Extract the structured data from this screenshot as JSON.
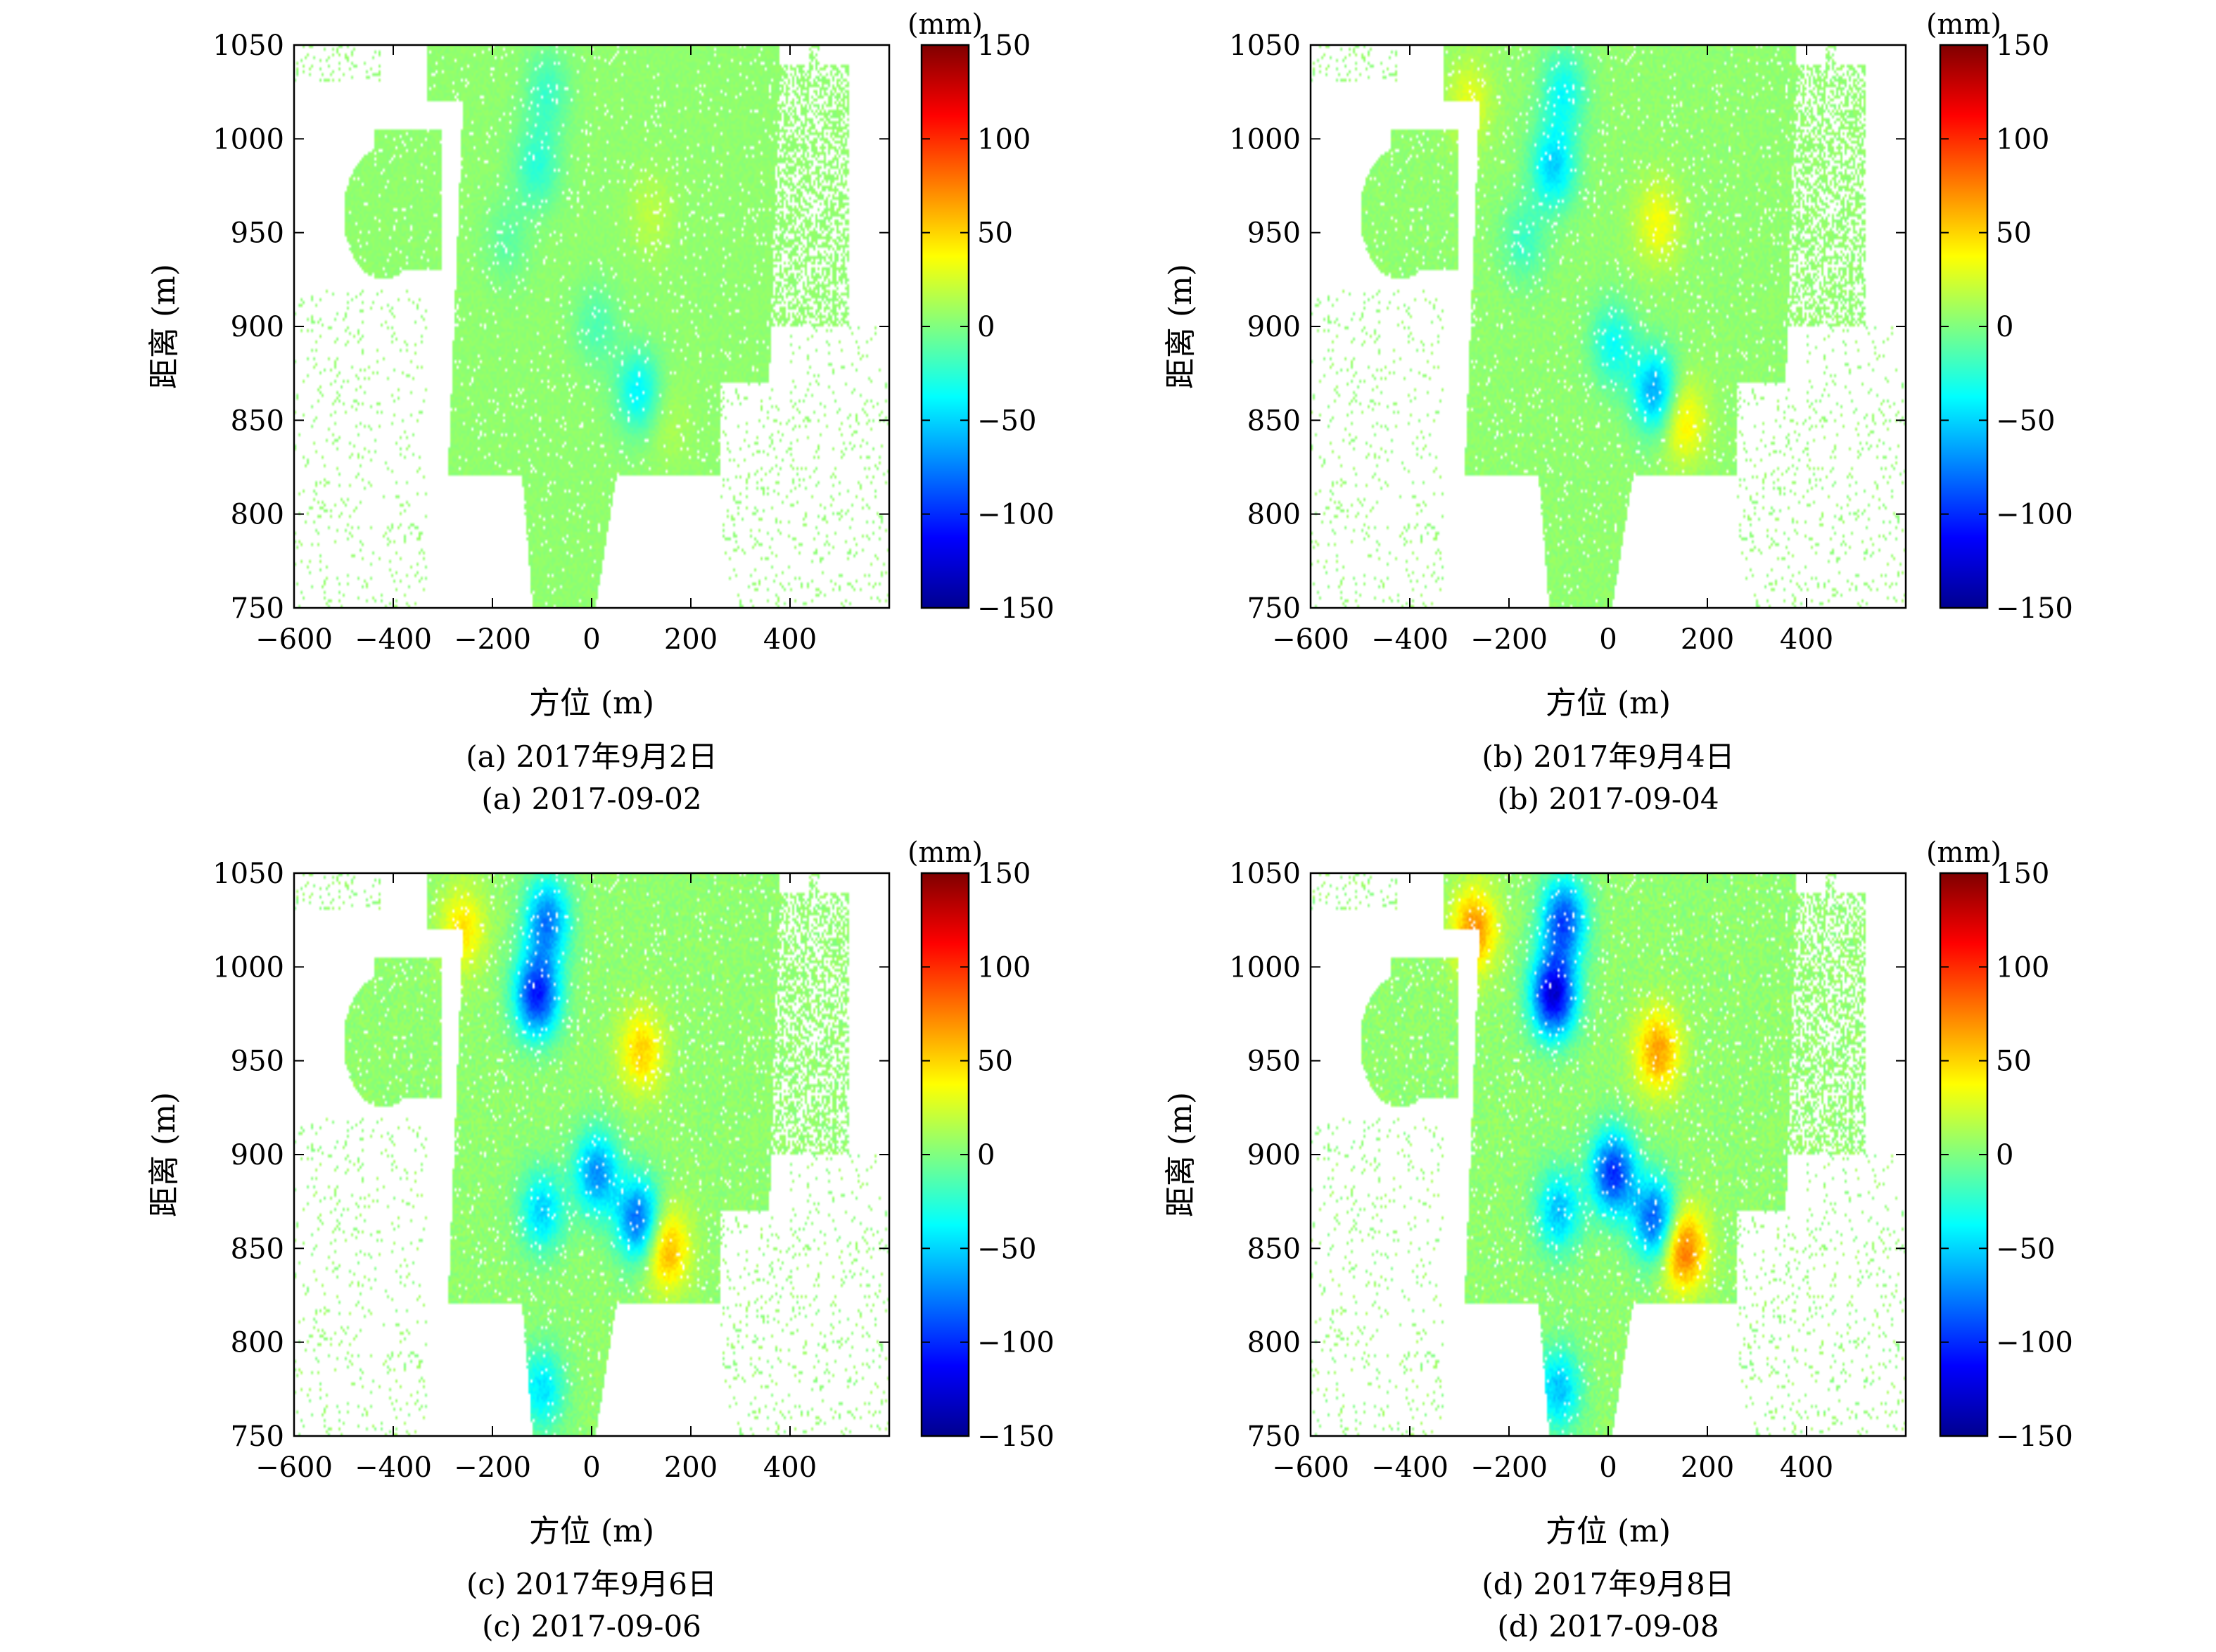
{
  "panels": [
    {
      "caption_cn": "(a) 2017年9月2日",
      "caption_en": "(a) 2017-09-02",
      "chart_data": {
        "type": "heatmap",
        "xlabel": "方位 (m)",
        "ylabel": "距离 (m)",
        "xlim": [
          -600,
          600
        ],
        "ylim": [
          750,
          1050
        ],
        "xticks": [
          -600,
          -400,
          -200,
          0,
          200,
          400
        ],
        "yticks": [
          750,
          800,
          850,
          900,
          950,
          1000,
          1050
        ],
        "colorbar": {
          "label": "(mm)",
          "range": [
            -150,
            150
          ],
          "ticks": [
            150,
            100,
            50,
            0,
            -50,
            -100,
            -150
          ],
          "colormap": "jet"
        },
        "grid": false,
        "intensity": 0.25,
        "features": [
          {
            "x": -90,
            "y": 1025,
            "value": -25
          },
          {
            "x": -110,
            "y": 985,
            "value": -30
          },
          {
            "x": 10,
            "y": 900,
            "value": -20
          },
          {
            "x": 95,
            "y": 865,
            "value": -45
          },
          {
            "x": -170,
            "y": 945,
            "value": -15
          },
          {
            "x": 150,
            "y": 850,
            "value": 10
          },
          {
            "x": 120,
            "y": 960,
            "value": 12
          }
        ]
      }
    },
    {
      "caption_cn": "(b) 2017年9月4日",
      "caption_en": "(b) 2017-09-04",
      "chart_data": {
        "type": "heatmap",
        "xlabel": "方位 (m)",
        "ylabel": "距离 (m)",
        "xlim": [
          -600,
          600
        ],
        "ylim": [
          750,
          1050
        ],
        "xticks": [
          -600,
          -400,
          -200,
          0,
          200,
          400
        ],
        "yticks": [
          750,
          800,
          850,
          900,
          950,
          1000,
          1050
        ],
        "colorbar": {
          "label": "(mm)",
          "range": [
            -150,
            150
          ],
          "ticks": [
            150,
            100,
            50,
            0,
            -50,
            -100,
            -150
          ],
          "colormap": "jet"
        },
        "grid": false,
        "intensity": 0.5,
        "features": [
          {
            "x": -90,
            "y": 1025,
            "value": -40
          },
          {
            "x": -110,
            "y": 985,
            "value": -55
          },
          {
            "x": 10,
            "y": 890,
            "value": -40
          },
          {
            "x": 95,
            "y": 865,
            "value": -70
          },
          {
            "x": 150,
            "y": 850,
            "value": 40
          },
          {
            "x": 100,
            "y": 955,
            "value": 30
          },
          {
            "x": -280,
            "y": 1020,
            "value": 25
          },
          {
            "x": -170,
            "y": 945,
            "value": -25
          }
        ]
      }
    },
    {
      "caption_cn": "(c) 2017年9月6日",
      "caption_en": "(c) 2017-09-06",
      "chart_data": {
        "type": "heatmap",
        "xlabel": "方位 (m)",
        "ylabel": "距离 (m)",
        "xlim": [
          -600,
          600
        ],
        "ylim": [
          750,
          1050
        ],
        "xticks": [
          -600,
          -400,
          -200,
          0,
          200,
          400
        ],
        "yticks": [
          750,
          800,
          850,
          900,
          950,
          1000,
          1050
        ],
        "colorbar": {
          "label": "(mm)",
          "range": [
            -150,
            150
          ],
          "ticks": [
            150,
            100,
            50,
            0,
            -50,
            -100,
            -150
          ],
          "colormap": "jet"
        },
        "grid": false,
        "intensity": 0.8,
        "features": [
          {
            "x": -90,
            "y": 1025,
            "value": -80
          },
          {
            "x": -110,
            "y": 985,
            "value": -110
          },
          {
            "x": 10,
            "y": 890,
            "value": -75
          },
          {
            "x": -100,
            "y": 870,
            "value": -55
          },
          {
            "x": 95,
            "y": 865,
            "value": -90
          },
          {
            "x": 150,
            "y": 850,
            "value": 60
          },
          {
            "x": 100,
            "y": 955,
            "value": 45
          },
          {
            "x": -260,
            "y": 1020,
            "value": 40
          },
          {
            "x": -100,
            "y": 775,
            "value": -50
          }
        ]
      }
    },
    {
      "caption_cn": "(d) 2017年9月8日",
      "caption_en": "(d) 2017-09-08",
      "chart_data": {
        "type": "heatmap",
        "xlabel": "方位 (m)",
        "ylabel": "距离 (m)",
        "xlim": [
          -600,
          600
        ],
        "ylim": [
          750,
          1050
        ],
        "xticks": [
          -600,
          -400,
          -200,
          0,
          200,
          400
        ],
        "yticks": [
          750,
          800,
          850,
          900,
          950,
          1000,
          1050
        ],
        "colorbar": {
          "label": "(mm)",
          "range": [
            -150,
            150
          ],
          "ticks": [
            150,
            100,
            50,
            0,
            -50,
            -100,
            -150
          ],
          "colormap": "jet"
        },
        "grid": false,
        "intensity": 1.0,
        "features": [
          {
            "x": -90,
            "y": 1025,
            "value": -95
          },
          {
            "x": -110,
            "y": 985,
            "value": -130
          },
          {
            "x": 10,
            "y": 890,
            "value": -105
          },
          {
            "x": -100,
            "y": 870,
            "value": -60
          },
          {
            "x": 95,
            "y": 865,
            "value": -95
          },
          {
            "x": 150,
            "y": 850,
            "value": 80
          },
          {
            "x": 100,
            "y": 955,
            "value": 60
          },
          {
            "x": -270,
            "y": 1020,
            "value": 65
          },
          {
            "x": -100,
            "y": 775,
            "value": -60
          }
        ]
      }
    }
  ],
  "colors": {
    "axis": "#000000",
    "background": "#ffffff"
  }
}
